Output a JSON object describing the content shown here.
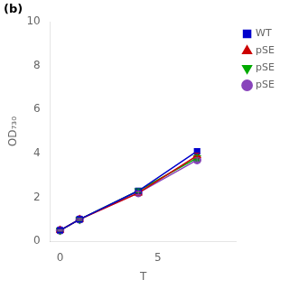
{
  "chart_data": {
    "type": "line",
    "xlabel": "T",
    "ylabel": "OD₇₃₀",
    "annotations": [
      "(b)"
    ],
    "x": [
      0,
      1,
      4,
      7
    ],
    "series": [
      {
        "name": "WT",
        "color": "#0000cc",
        "marker": "square",
        "values": [
          0.5,
          1.0,
          2.3,
          4.1
        ],
        "yerr": [
          0.03,
          0.04,
          0.07,
          0.12
        ]
      },
      {
        "name": "pSE",
        "color": "#cc0000",
        "marker": "triangle-up",
        "values": [
          0.5,
          1.0,
          2.2,
          3.9
        ],
        "yerr": [
          0.03,
          0.04,
          0.07,
          0.11
        ]
      },
      {
        "name": "pSE",
        "color": "#00aa00",
        "marker": "triangle-down",
        "values": [
          0.5,
          1.0,
          2.3,
          3.8
        ],
        "yerr": [
          0.03,
          0.05,
          0.09,
          0.13
        ]
      },
      {
        "name": "pSE",
        "color": "#8844bb",
        "marker": "circle",
        "values": [
          0.5,
          1.0,
          2.2,
          3.7
        ],
        "yerr": [
          0.03,
          0.04,
          0.08,
          0.1
        ]
      }
    ],
    "xlim": [
      -0.5,
      9
    ],
    "xticks": [
      0,
      5
    ],
    "ylim": [
      0,
      10
    ],
    "yticks": [
      0,
      2,
      4,
      6,
      8,
      10
    ],
    "grid": false,
    "legend": "right"
  }
}
